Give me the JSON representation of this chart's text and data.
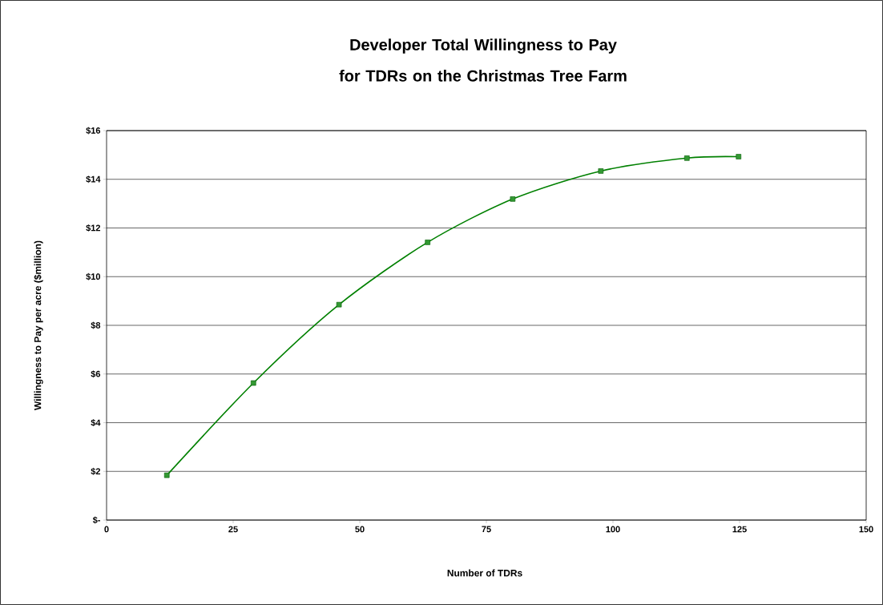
{
  "chart_data": {
    "type": "line",
    "title": "Developer Total Willingness to Pay for TDRs on the Christmas Tree Farm",
    "xlabel": "Number of TDRs",
    "ylabel": "Willingness to Pay per acre ($million)",
    "x": [
      11.9,
      29,
      45.9,
      63.4,
      80.2,
      97.6,
      114.6,
      124.8
    ],
    "series": [
      {
        "color": "#008000",
        "values": [
          1.84,
          5.63,
          8.85,
          11.41,
          13.19,
          14.34,
          14.87,
          14.93
        ]
      }
    ],
    "xlim": [
      0,
      150
    ],
    "xticks": [
      0,
      25,
      50,
      75,
      100,
      125,
      150
    ],
    "ylim": [
      0,
      16
    ],
    "yticks": [
      {
        "value": 0,
        "label": "$-"
      },
      {
        "value": 2,
        "label": "$2"
      },
      {
        "value": 4,
        "label": "$4"
      },
      {
        "value": 6,
        "label": "$6"
      },
      {
        "value": 8,
        "label": "$8"
      },
      {
        "value": 10,
        "label": "$10"
      },
      {
        "value": 12,
        "label": "$12"
      },
      {
        "value": 14,
        "label": "$14"
      },
      {
        "value": 16,
        "label": "$16"
      }
    ],
    "grid": "y",
    "marker": "square",
    "line_style": "solid"
  }
}
